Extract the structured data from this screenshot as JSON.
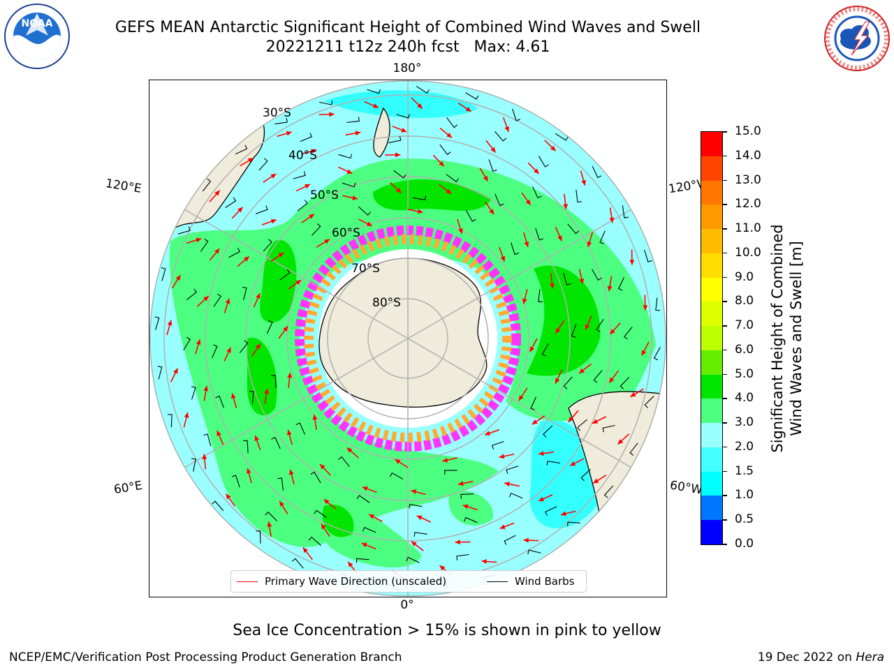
{
  "title_line1": "GEFS MEAN Antarctic Significant Height of Combined Wind Waves and Swell",
  "title_line2": "20221211 t12z 240h fcst   Max: 4.61",
  "map": {
    "longitude_labels": {
      "top": "180°",
      "bottom": "0°",
      "upper_left": "120°E",
      "upper_right": "120°W",
      "lower_left": "60°E",
      "lower_right": "60°W"
    },
    "latitude_labels": [
      "30°S",
      "40°S",
      "50°S",
      "60°S",
      "70°S",
      "80°S"
    ],
    "colors": {
      "land": "#efecdb",
      "ocean_low": "#99ffff",
      "cyan": "#33ffff",
      "green_light": "#4dff80",
      "green": "#00e600",
      "ice_pink": "#ff33ff",
      "ice_orange": "#ffaa33",
      "arrow": "#ff0000",
      "barb": "#000000",
      "grid": "#b0b0b0"
    }
  },
  "legend": {
    "primary_wave": "Primary Wave Direction (unscaled)",
    "wind_barbs": "Wind Barbs"
  },
  "colorbar": {
    "label_line1": "Significant Height of Combined",
    "label_line2": "Wind Waves and Swell [m]",
    "ticks": [
      "0.0",
      "0.5",
      "1.0",
      "1.5",
      "2.0",
      "3.0",
      "4.0",
      "5.0",
      "6.0",
      "7.0",
      "8.0",
      "9.0",
      "10.0",
      "11.0",
      "12.0",
      "13.0",
      "14.0",
      "15.0"
    ],
    "colors": [
      "#0000ff",
      "#0077ff",
      "#00ffff",
      "#44ffff",
      "#99ffff",
      "#4dff80",
      "#00e600",
      "#66ee00",
      "#bbff00",
      "#ddff00",
      "#ffff00",
      "#ffdd00",
      "#ffbb00",
      "#ff9900",
      "#ff7700",
      "#ff4400",
      "#ff0000"
    ]
  },
  "sea_ice_note": "Sea Ice Concentration > 15% is shown in pink to yellow",
  "footer_left": "NCEP/EMC/Verification Post Processing Product Generation Branch",
  "footer_date": "19 Dec 2022 on ",
  "footer_machine": "Hera",
  "logos": {
    "noaa": "NOAA",
    "nws": "NATIONAL WEATHER SERVICE"
  }
}
